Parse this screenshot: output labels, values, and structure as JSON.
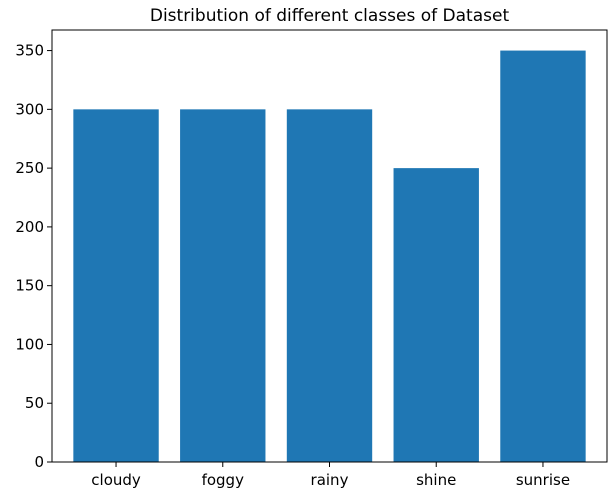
{
  "chart_data": {
    "type": "bar",
    "title": "Distribution of different classes of Dataset",
    "xlabel": "",
    "ylabel": "",
    "categories": [
      "cloudy",
      "foggy",
      "rainy",
      "shine",
      "sunrise"
    ],
    "values": [
      300,
      300,
      300,
      250,
      350
    ],
    "ylim": [
      0,
      367.5
    ],
    "yticks": [
      0,
      50,
      100,
      150,
      200,
      250,
      300,
      350
    ],
    "grid": false,
    "legend": "none",
    "bar_color": "#1f77b4"
  }
}
